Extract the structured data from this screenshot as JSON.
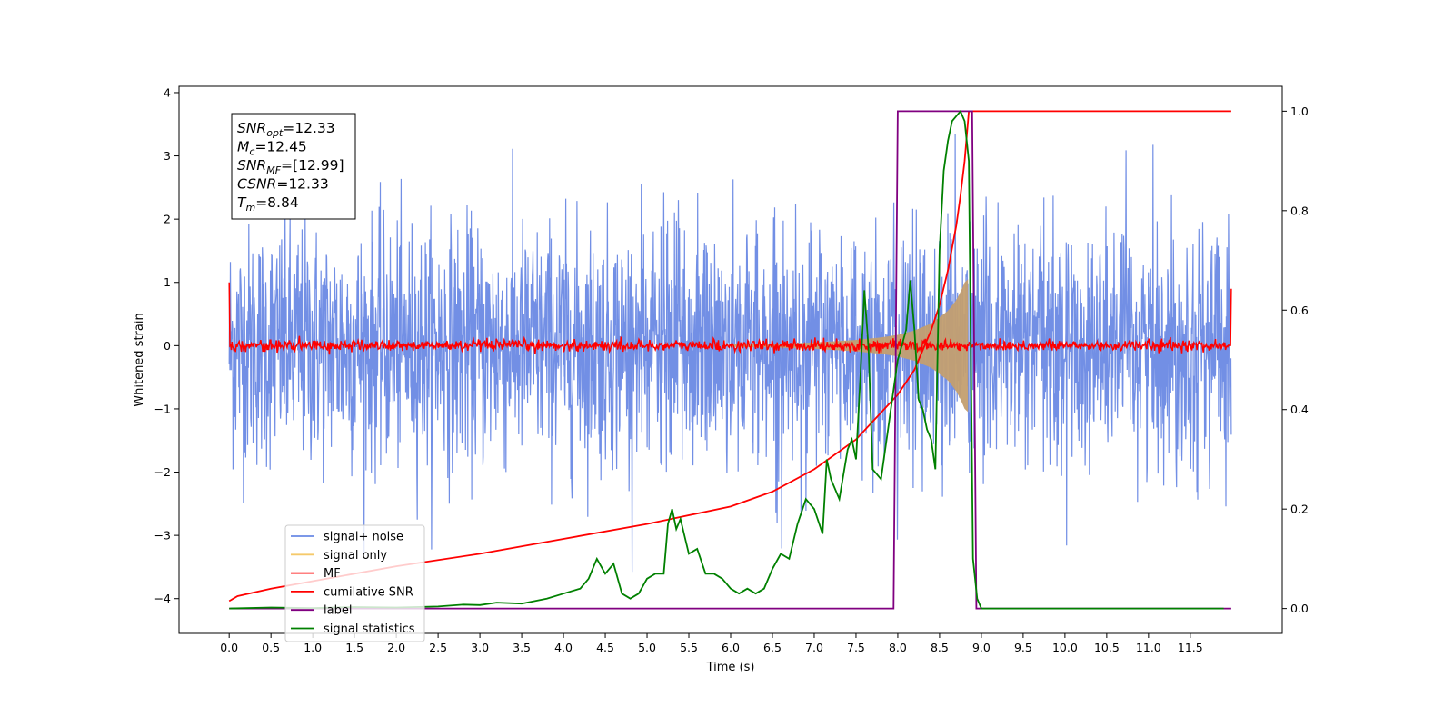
{
  "chart_data": {
    "type": "line",
    "title": "",
    "xlabel": "Time (s)",
    "ylabel": "Whitened strain",
    "xlim": [
      -0.6,
      12.6
    ],
    "ylim": [
      -4.55,
      4.1
    ],
    "y2lim": [
      -0.05,
      1.05
    ],
    "x_ticks": [
      0.0,
      0.5,
      1.0,
      1.5,
      2.0,
      2.5,
      3.0,
      3.5,
      4.0,
      4.5,
      5.0,
      5.5,
      6.0,
      6.5,
      7.0,
      7.5,
      8.0,
      8.5,
      9.0,
      9.5,
      10.0,
      10.5,
      11.0,
      11.5
    ],
    "x_tick_labels": [
      "0.0",
      "0.5",
      "1.0",
      "1.5",
      "2.0",
      "2.5",
      "3.0",
      "3.5",
      "4.0",
      "4.5",
      "5.0",
      "5.5",
      "6.0",
      "6.5",
      "7.0",
      "7.5",
      "8.0",
      "8.5",
      "9.0",
      "9.5",
      "10.0",
      "10.5",
      "11.0",
      "11.5"
    ],
    "y_ticks": [
      4,
      3,
      2,
      1,
      0,
      -1,
      -2,
      -3,
      -4
    ],
    "y_tick_labels": [
      "4",
      "3",
      "2",
      "1",
      "0",
      "−1",
      "−2",
      "−3",
      "−4"
    ],
    "y2_ticks": [
      1.0,
      0.8,
      0.6,
      0.4,
      0.2,
      0.0
    ],
    "y2_tick_labels": [
      "1.0",
      "0.8",
      "0.6",
      "0.4",
      "0.2",
      "0.0"
    ],
    "grid": false,
    "legend_position": "lower-left",
    "series": [
      {
        "name": "signal+ noise",
        "axis": "left",
        "color": "#6a89e4",
        "kind": "noise",
        "x_range": [
          0.0,
          11.99
        ],
        "sigma": 0.95,
        "max_abs": 3.7,
        "baseline_x": [
          0.0,
          11.99
        ],
        "baseline_y": [
          0.0,
          0.0
        ]
      },
      {
        "name": "signal only",
        "axis": "left",
        "color": "#f5c96b",
        "fill_color": "#c39f70",
        "kind": "chirp_envelope",
        "x": [
          6.0,
          6.5,
          7.0,
          7.5,
          7.8,
          8.0,
          8.2,
          8.4,
          8.6,
          8.7,
          8.75,
          8.8,
          8.84
        ],
        "envelope": [
          0.02,
          0.03,
          0.05,
          0.09,
          0.13,
          0.17,
          0.24,
          0.35,
          0.55,
          0.72,
          0.85,
          1.0,
          1.05
        ]
      },
      {
        "name": "MF",
        "axis": "left",
        "color": "#ff0000",
        "kind": "noise",
        "x_range": [
          0.0,
          11.99
        ],
        "sigma": 0.045,
        "max_abs": 0.3,
        "endpoints": [
          1.0,
          0.9
        ]
      },
      {
        "name": "cumilative SNR",
        "axis": "right",
        "color": "#ff0000",
        "x": [
          0.0,
          0.1,
          0.5,
          1.0,
          2.0,
          3.0,
          4.0,
          5.0,
          6.0,
          6.5,
          7.0,
          7.5,
          8.0,
          8.2,
          8.4,
          8.5,
          8.6,
          8.7,
          8.75,
          8.8,
          8.84,
          8.85,
          9.0,
          10.0,
          11.0,
          11.99
        ],
        "values": [
          0.015,
          0.025,
          0.04,
          0.055,
          0.085,
          0.11,
          0.14,
          0.17,
          0.205,
          0.235,
          0.28,
          0.34,
          0.43,
          0.48,
          0.56,
          0.61,
          0.68,
          0.77,
          0.83,
          0.9,
          0.98,
          1.0,
          1.0,
          1.0,
          1.0,
          1.0
        ]
      },
      {
        "name": "label",
        "axis": "right",
        "color": "#800080",
        "x": [
          0.0,
          7.95,
          8.0,
          8.89,
          8.94,
          11.99
        ],
        "values": [
          0.0,
          0.0,
          1.0,
          1.0,
          0.0,
          0.0
        ]
      },
      {
        "name": "signal statistics",
        "axis": "right",
        "color": "#008000",
        "x": [
          0.0,
          0.5,
          1.0,
          1.5,
          2.0,
          2.5,
          2.8,
          3.0,
          3.2,
          3.5,
          3.8,
          4.0,
          4.2,
          4.3,
          4.4,
          4.5,
          4.6,
          4.7,
          4.8,
          4.9,
          5.0,
          5.1,
          5.2,
          5.25,
          5.3,
          5.35,
          5.4,
          5.5,
          5.6,
          5.7,
          5.8,
          5.9,
          6.0,
          6.1,
          6.2,
          6.3,
          6.4,
          6.5,
          6.6,
          6.7,
          6.8,
          6.9,
          7.0,
          7.1,
          7.15,
          7.2,
          7.3,
          7.4,
          7.45,
          7.5,
          7.55,
          7.6,
          7.65,
          7.7,
          7.8,
          7.9,
          8.0,
          8.1,
          8.15,
          8.2,
          8.25,
          8.3,
          8.35,
          8.4,
          8.45,
          8.5,
          8.55,
          8.6,
          8.65,
          8.7,
          8.75,
          8.8,
          8.85,
          8.9,
          8.95,
          9.0,
          10.0,
          11.0,
          11.9
        ],
        "values": [
          0.0,
          0.002,
          0.001,
          0.003,
          0.002,
          0.004,
          0.008,
          0.007,
          0.012,
          0.01,
          0.02,
          0.03,
          0.04,
          0.06,
          0.1,
          0.07,
          0.09,
          0.03,
          0.02,
          0.03,
          0.06,
          0.07,
          0.07,
          0.17,
          0.2,
          0.16,
          0.18,
          0.11,
          0.12,
          0.07,
          0.07,
          0.06,
          0.04,
          0.03,
          0.04,
          0.03,
          0.04,
          0.08,
          0.11,
          0.1,
          0.17,
          0.22,
          0.2,
          0.15,
          0.3,
          0.26,
          0.22,
          0.32,
          0.34,
          0.3,
          0.46,
          0.64,
          0.52,
          0.28,
          0.26,
          0.38,
          0.5,
          0.56,
          0.66,
          0.56,
          0.42,
          0.4,
          0.36,
          0.34,
          0.28,
          0.72,
          0.88,
          0.94,
          0.98,
          0.99,
          1.0,
          0.98,
          0.9,
          0.1,
          0.02,
          0.0,
          0.0,
          0.0,
          0.0
        ]
      }
    ],
    "annotation_box": {
      "lines": [
        {
          "main": "SNR",
          "sub": "opt",
          "rest": "=12.33"
        },
        {
          "main": "M",
          "sub": "c",
          "rest": "=12.45"
        },
        {
          "main": "SNR",
          "sub": "MF",
          "rest": "=[12.99]"
        },
        {
          "main": "CSNR",
          "sub": "",
          "rest": "=12.33"
        },
        {
          "main": "T",
          "sub": "m",
          "rest": "=8.84"
        }
      ]
    }
  }
}
